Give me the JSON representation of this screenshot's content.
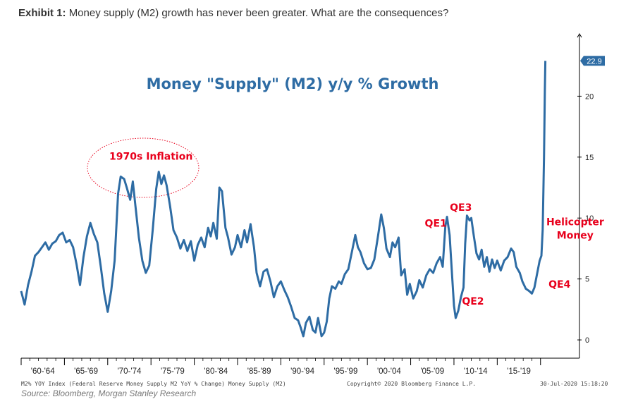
{
  "header": {
    "exhibit": "Exhibit 1:",
    "title": "Money supply (M2) growth has never been greater. What are the consequences?"
  },
  "chart_data": {
    "type": "line",
    "title": "Money \"Supply\" (M2) y/y % Growth",
    "ylim": [
      -1.5,
      25
    ],
    "y_ticks": [
      0,
      5,
      10,
      15,
      20
    ],
    "x_tick_labels": [
      "'60-'64",
      "'65-'69",
      "'70-'74",
      "'75-'79",
      "'80-'84",
      "'85-'89",
      "'90-'94",
      "'95-'99",
      "'00-'04",
      "'05-'09",
      "'10-'14",
      "'15-'19"
    ],
    "last_value_label": "22.9",
    "series": [
      {
        "values": [
          [
            1960.0,
            4.0
          ],
          [
            1960.4,
            2.9
          ],
          [
            1960.8,
            4.5
          ],
          [
            1961.2,
            5.6
          ],
          [
            1961.6,
            6.9
          ],
          [
            1962.0,
            7.2
          ],
          [
            1962.4,
            7.6
          ],
          [
            1962.8,
            8.0
          ],
          [
            1963.2,
            7.4
          ],
          [
            1963.6,
            7.9
          ],
          [
            1964.0,
            8.1
          ],
          [
            1964.4,
            8.6
          ],
          [
            1964.8,
            8.8
          ],
          [
            1965.2,
            8.0
          ],
          [
            1965.6,
            8.2
          ],
          [
            1966.0,
            7.6
          ],
          [
            1966.4,
            6.2
          ],
          [
            1966.8,
            4.5
          ],
          [
            1967.2,
            6.8
          ],
          [
            1967.6,
            8.5
          ],
          [
            1968.0,
            9.6
          ],
          [
            1968.4,
            8.7
          ],
          [
            1968.8,
            8.0
          ],
          [
            1969.2,
            6.0
          ],
          [
            1969.6,
            3.8
          ],
          [
            1970.0,
            2.3
          ],
          [
            1970.4,
            4.0
          ],
          [
            1970.8,
            6.5
          ],
          [
            1971.2,
            12.0
          ],
          [
            1971.5,
            13.4
          ],
          [
            1971.9,
            13.2
          ],
          [
            1972.2,
            12.5
          ],
          [
            1972.6,
            11.5
          ],
          [
            1972.9,
            13.0
          ],
          [
            1973.2,
            11.0
          ],
          [
            1973.6,
            8.4
          ],
          [
            1974.0,
            6.5
          ],
          [
            1974.4,
            5.5
          ],
          [
            1974.8,
            6.1
          ],
          [
            1975.2,
            9.0
          ],
          [
            1975.6,
            12.4
          ],
          [
            1975.9,
            13.8
          ],
          [
            1976.2,
            12.8
          ],
          [
            1976.5,
            13.5
          ],
          [
            1976.8,
            12.7
          ],
          [
            1977.2,
            11.0
          ],
          [
            1977.6,
            9.0
          ],
          [
            1978.0,
            8.4
          ],
          [
            1978.4,
            7.5
          ],
          [
            1978.8,
            8.2
          ],
          [
            1979.2,
            7.3
          ],
          [
            1979.6,
            8.1
          ],
          [
            1980.0,
            6.5
          ],
          [
            1980.4,
            7.8
          ],
          [
            1980.8,
            8.4
          ],
          [
            1981.2,
            7.6
          ],
          [
            1981.6,
            9.2
          ],
          [
            1981.9,
            8.5
          ],
          [
            1982.2,
            9.6
          ],
          [
            1982.6,
            8.3
          ],
          [
            1982.9,
            12.5
          ],
          [
            1983.2,
            12.2
          ],
          [
            1983.6,
            9.2
          ],
          [
            1983.9,
            8.4
          ],
          [
            1984.3,
            7.0
          ],
          [
            1984.7,
            7.6
          ],
          [
            1985.0,
            8.6
          ],
          [
            1985.4,
            7.6
          ],
          [
            1985.8,
            9.0
          ],
          [
            1986.1,
            8.0
          ],
          [
            1986.5,
            9.5
          ],
          [
            1986.9,
            7.6
          ],
          [
            1987.2,
            5.5
          ],
          [
            1987.6,
            4.4
          ],
          [
            1988.0,
            5.6
          ],
          [
            1988.4,
            5.8
          ],
          [
            1988.8,
            4.8
          ],
          [
            1989.2,
            3.5
          ],
          [
            1989.6,
            4.4
          ],
          [
            1990.0,
            4.8
          ],
          [
            1990.4,
            4.1
          ],
          [
            1990.8,
            3.5
          ],
          [
            1991.2,
            2.7
          ],
          [
            1991.6,
            1.8
          ],
          [
            1992.0,
            1.6
          ],
          [
            1992.3,
            1.0
          ],
          [
            1992.6,
            0.3
          ],
          [
            1992.9,
            1.4
          ],
          [
            1993.3,
            1.9
          ],
          [
            1993.7,
            0.8
          ],
          [
            1994.0,
            0.6
          ],
          [
            1994.3,
            1.8
          ],
          [
            1994.7,
            0.3
          ],
          [
            1995.0,
            0.6
          ],
          [
            1995.3,
            1.5
          ],
          [
            1995.6,
            3.4
          ],
          [
            1995.9,
            4.4
          ],
          [
            1996.3,
            4.2
          ],
          [
            1996.7,
            4.8
          ],
          [
            1997.0,
            4.6
          ],
          [
            1997.4,
            5.4
          ],
          [
            1997.8,
            5.8
          ],
          [
            1998.2,
            7.2
          ],
          [
            1998.6,
            8.6
          ],
          [
            1998.9,
            7.6
          ],
          [
            1999.2,
            7.2
          ],
          [
            1999.6,
            6.3
          ],
          [
            2000.0,
            5.8
          ],
          [
            2000.4,
            5.9
          ],
          [
            2000.8,
            6.6
          ],
          [
            2001.2,
            8.4
          ],
          [
            2001.6,
            10.3
          ],
          [
            2001.9,
            9.2
          ],
          [
            2002.2,
            7.5
          ],
          [
            2002.6,
            6.8
          ],
          [
            2002.9,
            8.0
          ],
          [
            2003.2,
            7.6
          ],
          [
            2003.6,
            8.4
          ],
          [
            2003.9,
            5.3
          ],
          [
            2004.3,
            5.8
          ],
          [
            2004.6,
            3.7
          ],
          [
            2004.9,
            4.6
          ],
          [
            2005.3,
            3.4
          ],
          [
            2005.7,
            4.0
          ],
          [
            2006.0,
            4.9
          ],
          [
            2006.4,
            4.3
          ],
          [
            2006.8,
            5.3
          ],
          [
            2007.2,
            5.8
          ],
          [
            2007.6,
            5.5
          ],
          [
            2008.0,
            6.3
          ],
          [
            2008.4,
            6.8
          ],
          [
            2008.7,
            6.0
          ],
          [
            2009.0,
            9.3
          ],
          [
            2009.2,
            10.1
          ],
          [
            2009.5,
            8.6
          ],
          [
            2009.8,
            5.1
          ],
          [
            2010.0,
            2.8
          ],
          [
            2010.2,
            1.8
          ],
          [
            2010.5,
            2.4
          ],
          [
            2010.8,
            3.5
          ],
          [
            2011.1,
            4.3
          ],
          [
            2011.3,
            7.9
          ],
          [
            2011.5,
            10.2
          ],
          [
            2011.8,
            9.8
          ],
          [
            2012.0,
            10.0
          ],
          [
            2012.3,
            8.5
          ],
          [
            2012.6,
            7.1
          ],
          [
            2012.9,
            6.6
          ],
          [
            2013.2,
            7.4
          ],
          [
            2013.5,
            6.0
          ],
          [
            2013.8,
            6.8
          ],
          [
            2014.1,
            5.6
          ],
          [
            2014.4,
            6.6
          ],
          [
            2014.7,
            5.9
          ],
          [
            2015.0,
            6.5
          ],
          [
            2015.4,
            5.7
          ],
          [
            2015.8,
            6.5
          ],
          [
            2016.2,
            6.8
          ],
          [
            2016.6,
            7.5
          ],
          [
            2016.9,
            7.2
          ],
          [
            2017.2,
            6.0
          ],
          [
            2017.6,
            5.5
          ],
          [
            2017.9,
            4.8
          ],
          [
            2018.3,
            4.2
          ],
          [
            2018.7,
            4.0
          ],
          [
            2019.0,
            3.8
          ],
          [
            2019.3,
            4.3
          ],
          [
            2019.6,
            5.4
          ],
          [
            2019.9,
            6.5
          ],
          [
            2020.1,
            6.9
          ],
          [
            2020.25,
            9.0
          ],
          [
            2020.4,
            15.0
          ],
          [
            2020.5,
            20.5
          ],
          [
            2020.56,
            22.9
          ]
        ]
      }
    ],
    "annotations": [
      {
        "text": "1970s Inflation",
        "x": 1975.0,
        "y": 14.8
      },
      {
        "text": "QE1",
        "x": 2007.9,
        "y": 9.3
      },
      {
        "text": "QE3",
        "x": 2010.8,
        "y": 10.6
      },
      {
        "text": "QE2",
        "x": 2012.2,
        "y": 2.9
      },
      {
        "text": "Helicopter",
        "x": 2024.0,
        "y": 9.4
      },
      {
        "text": "Money",
        "x": 2024.0,
        "y": 8.3
      },
      {
        "text": "QE4",
        "x": 2022.2,
        "y": 4.3
      }
    ],
    "colors": {
      "line": "#2e6ca4",
      "annotation": "#e8001c",
      "title": "#2e6ca4",
      "tag_bg": "#2e6ca4"
    }
  },
  "footer": {
    "index_note": "M2% YOY Index (Federal Reserve Money Supply M2 YoY % Change) Money Supply (M2)",
    "copyright": "Copyright© 2020 Bloomberg Finance L.P.",
    "timestamp": "30-Jul-2020 15:18:20",
    "source": "Source: Bloomberg, Morgan Stanley Research"
  }
}
